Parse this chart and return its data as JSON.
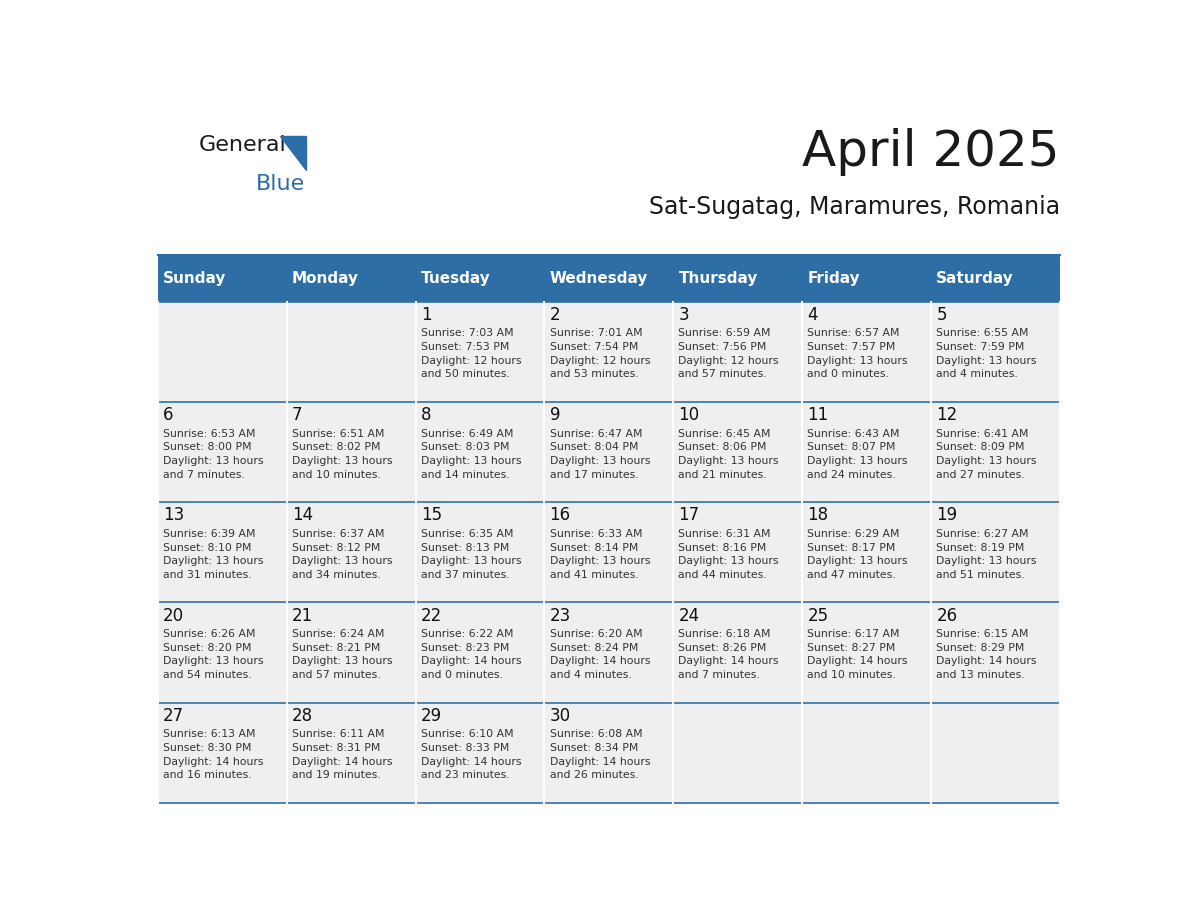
{
  "title": "April 2025",
  "subtitle": "Sat-Sugatag, Maramures, Romania",
  "header_bg_color": "#2E6EA6",
  "header_text_color": "#FFFFFF",
  "cell_bg_color": "#EFEFEF",
  "day_number_color": "#111111",
  "cell_text_color": "#333333",
  "grid_line_color": "#2E6EA6",
  "days_of_week": [
    "Sunday",
    "Monday",
    "Tuesday",
    "Wednesday",
    "Thursday",
    "Friday",
    "Saturday"
  ],
  "weeks": [
    [
      {
        "day": "",
        "info": ""
      },
      {
        "day": "",
        "info": ""
      },
      {
        "day": "1",
        "info": "Sunrise: 7:03 AM\nSunset: 7:53 PM\nDaylight: 12 hours\nand 50 minutes."
      },
      {
        "day": "2",
        "info": "Sunrise: 7:01 AM\nSunset: 7:54 PM\nDaylight: 12 hours\nand 53 minutes."
      },
      {
        "day": "3",
        "info": "Sunrise: 6:59 AM\nSunset: 7:56 PM\nDaylight: 12 hours\nand 57 minutes."
      },
      {
        "day": "4",
        "info": "Sunrise: 6:57 AM\nSunset: 7:57 PM\nDaylight: 13 hours\nand 0 minutes."
      },
      {
        "day": "5",
        "info": "Sunrise: 6:55 AM\nSunset: 7:59 PM\nDaylight: 13 hours\nand 4 minutes."
      }
    ],
    [
      {
        "day": "6",
        "info": "Sunrise: 6:53 AM\nSunset: 8:00 PM\nDaylight: 13 hours\nand 7 minutes."
      },
      {
        "day": "7",
        "info": "Sunrise: 6:51 AM\nSunset: 8:02 PM\nDaylight: 13 hours\nand 10 minutes."
      },
      {
        "day": "8",
        "info": "Sunrise: 6:49 AM\nSunset: 8:03 PM\nDaylight: 13 hours\nand 14 minutes."
      },
      {
        "day": "9",
        "info": "Sunrise: 6:47 AM\nSunset: 8:04 PM\nDaylight: 13 hours\nand 17 minutes."
      },
      {
        "day": "10",
        "info": "Sunrise: 6:45 AM\nSunset: 8:06 PM\nDaylight: 13 hours\nand 21 minutes."
      },
      {
        "day": "11",
        "info": "Sunrise: 6:43 AM\nSunset: 8:07 PM\nDaylight: 13 hours\nand 24 minutes."
      },
      {
        "day": "12",
        "info": "Sunrise: 6:41 AM\nSunset: 8:09 PM\nDaylight: 13 hours\nand 27 minutes."
      }
    ],
    [
      {
        "day": "13",
        "info": "Sunrise: 6:39 AM\nSunset: 8:10 PM\nDaylight: 13 hours\nand 31 minutes."
      },
      {
        "day": "14",
        "info": "Sunrise: 6:37 AM\nSunset: 8:12 PM\nDaylight: 13 hours\nand 34 minutes."
      },
      {
        "day": "15",
        "info": "Sunrise: 6:35 AM\nSunset: 8:13 PM\nDaylight: 13 hours\nand 37 minutes."
      },
      {
        "day": "16",
        "info": "Sunrise: 6:33 AM\nSunset: 8:14 PM\nDaylight: 13 hours\nand 41 minutes."
      },
      {
        "day": "17",
        "info": "Sunrise: 6:31 AM\nSunset: 8:16 PM\nDaylight: 13 hours\nand 44 minutes."
      },
      {
        "day": "18",
        "info": "Sunrise: 6:29 AM\nSunset: 8:17 PM\nDaylight: 13 hours\nand 47 minutes."
      },
      {
        "day": "19",
        "info": "Sunrise: 6:27 AM\nSunset: 8:19 PM\nDaylight: 13 hours\nand 51 minutes."
      }
    ],
    [
      {
        "day": "20",
        "info": "Sunrise: 6:26 AM\nSunset: 8:20 PM\nDaylight: 13 hours\nand 54 minutes."
      },
      {
        "day": "21",
        "info": "Sunrise: 6:24 AM\nSunset: 8:21 PM\nDaylight: 13 hours\nand 57 minutes."
      },
      {
        "day": "22",
        "info": "Sunrise: 6:22 AM\nSunset: 8:23 PM\nDaylight: 14 hours\nand 0 minutes."
      },
      {
        "day": "23",
        "info": "Sunrise: 6:20 AM\nSunset: 8:24 PM\nDaylight: 14 hours\nand 4 minutes."
      },
      {
        "day": "24",
        "info": "Sunrise: 6:18 AM\nSunset: 8:26 PM\nDaylight: 14 hours\nand 7 minutes."
      },
      {
        "day": "25",
        "info": "Sunrise: 6:17 AM\nSunset: 8:27 PM\nDaylight: 14 hours\nand 10 minutes."
      },
      {
        "day": "26",
        "info": "Sunrise: 6:15 AM\nSunset: 8:29 PM\nDaylight: 14 hours\nand 13 minutes."
      }
    ],
    [
      {
        "day": "27",
        "info": "Sunrise: 6:13 AM\nSunset: 8:30 PM\nDaylight: 14 hours\nand 16 minutes."
      },
      {
        "day": "28",
        "info": "Sunrise: 6:11 AM\nSunset: 8:31 PM\nDaylight: 14 hours\nand 19 minutes."
      },
      {
        "day": "29",
        "info": "Sunrise: 6:10 AM\nSunset: 8:33 PM\nDaylight: 14 hours\nand 23 minutes."
      },
      {
        "day": "30",
        "info": "Sunrise: 6:08 AM\nSunset: 8:34 PM\nDaylight: 14 hours\nand 26 minutes."
      },
      {
        "day": "",
        "info": ""
      },
      {
        "day": "",
        "info": ""
      },
      {
        "day": "",
        "info": ""
      }
    ]
  ]
}
